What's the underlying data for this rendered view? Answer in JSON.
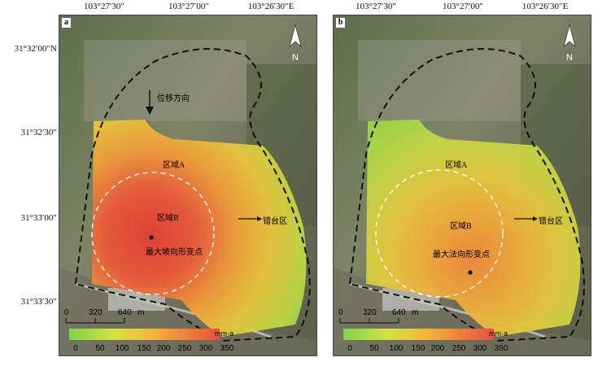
{
  "top_coords": [
    "103°27′30″",
    "103°27′00″",
    "103°26′30″E"
  ],
  "left_coords": [
    "31°32′00″N",
    "31°32′30″",
    "31°33′00″",
    "31°33′30″"
  ],
  "panels": {
    "a": {
      "letter": "a",
      "north": "N",
      "region_a": "区域A",
      "region_b": "区域B",
      "arrow_label": "错台区",
      "max_point_label": "最大坡向形变点",
      "displacement_label": "位移方向",
      "scale": [
        "0",
        "320",
        "640",
        "m"
      ],
      "unit": "mm·a",
      "ticks": [
        "0",
        "50",
        "100",
        "150",
        "200",
        "250",
        "300",
        "350"
      ]
    },
    "b": {
      "letter": "b",
      "north": "N",
      "region_a": "区域A",
      "region_b": "区域B",
      "arrow_label": "错台区",
      "max_point_label": "最大法向形变点",
      "scale": [
        "0",
        "320",
        "640",
        "m"
      ],
      "unit": "mm·a",
      "ticks": [
        "0",
        "50",
        "100",
        "150",
        "200",
        "250",
        "300",
        "350"
      ]
    }
  },
  "colors": {
    "ramp": [
      "#7fd24e",
      "#d6e33e",
      "#f3b63a",
      "#ef7a3b",
      "#e6503d"
    ]
  }
}
